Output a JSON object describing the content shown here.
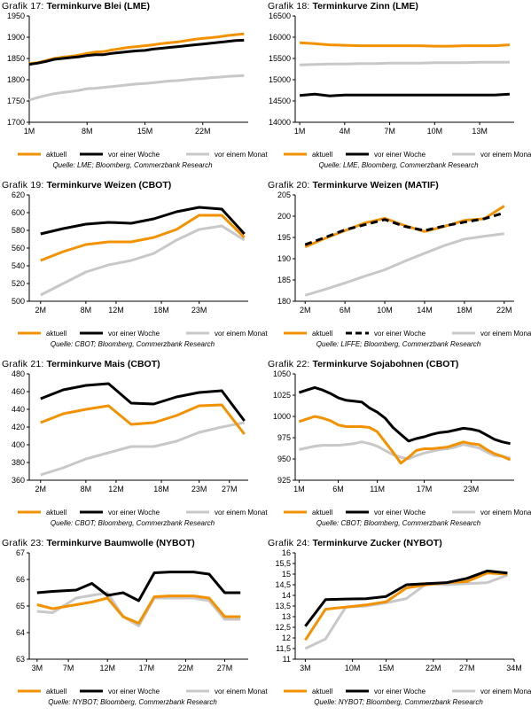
{
  "legend_labels": [
    "aktuell",
    "vor einer Woche",
    "vor einem Monat"
  ],
  "colors": {
    "aktuell": "#f39200",
    "vor einer Woche": "#000000",
    "vor einem Monat": "#c8c8c8"
  },
  "chart_data": [
    {
      "type": "line",
      "prefix": "Grafik 17:",
      "title": "Terminkurve Blei (LME)",
      "source": "Quelle: LME; Bloomberg, Commerzbank Research",
      "x": [
        1,
        2,
        3,
        4,
        5,
        6,
        7,
        8,
        9,
        10,
        11,
        12,
        13,
        14,
        15,
        16,
        17,
        18,
        19,
        20,
        21,
        22,
        23,
        24,
        25,
        26,
        27
      ],
      "xlim": [
        1,
        27.5
      ],
      "xticks": [
        1,
        8,
        15,
        22
      ],
      "xtick_labels": [
        "1M",
        "8M",
        "15M",
        "22M"
      ],
      "ylim": [
        1700,
        1950
      ],
      "yticks": [
        1700,
        1750,
        1800,
        1850,
        1900,
        1950
      ],
      "series": [
        {
          "name": "aktuell",
          "values": [
            1838,
            1840,
            1845,
            1850,
            1853,
            1855,
            1858,
            1862,
            1865,
            1866,
            1870,
            1873,
            1876,
            1878,
            1880,
            1882,
            1885,
            1887,
            1889,
            1892,
            1895,
            1897,
            1899,
            1901,
            1904,
            1906,
            1908
          ]
        },
        {
          "name": "vor einer Woche",
          "values": [
            1836,
            1839,
            1843,
            1848,
            1850,
            1852,
            1854,
            1857,
            1859,
            1859,
            1862,
            1864,
            1866,
            1868,
            1869,
            1872,
            1874,
            1876,
            1878,
            1880,
            1882,
            1884,
            1886,
            1888,
            1890,
            1892,
            1893
          ]
        },
        {
          "name": "vor einem Monat",
          "values": [
            1752,
            1758,
            1763,
            1767,
            1770,
            1772,
            1775,
            1779,
            1780,
            1782,
            1784,
            1786,
            1788,
            1790,
            1791,
            1793,
            1795,
            1797,
            1798,
            1800,
            1802,
            1803,
            1805,
            1806,
            1808,
            1809,
            1810
          ]
        }
      ]
    },
    {
      "type": "line",
      "prefix": "Grafik 18:",
      "title": "Terminkurve Zinn (LME)",
      "source": "Quelle: LME, Bloomberg, Commerzbank Research",
      "x": [
        1,
        2,
        3,
        4,
        5,
        6,
        7,
        8,
        9,
        10,
        11,
        12,
        13,
        14,
        15
      ],
      "xlim": [
        0.7,
        15.3
      ],
      "xticks": [
        1,
        4,
        7,
        10,
        13
      ],
      "xtick_labels": [
        "1M",
        "4M",
        "7M",
        "10M",
        "13M"
      ],
      "ylim": [
        14000,
        16500
      ],
      "yticks": [
        14000,
        14500,
        15000,
        15500,
        16000,
        16500
      ],
      "series": [
        {
          "name": "aktuell",
          "values": [
            15870,
            15850,
            15820,
            15810,
            15800,
            15800,
            15800,
            15800,
            15800,
            15790,
            15790,
            15800,
            15800,
            15800,
            15820
          ]
        },
        {
          "name": "vor einer Woche",
          "values": [
            14630,
            14660,
            14620,
            14640,
            14640,
            14640,
            14640,
            14640,
            14640,
            14640,
            14640,
            14640,
            14640,
            14640,
            14660
          ]
        },
        {
          "name": "vor einem Monat",
          "values": [
            15350,
            15360,
            15370,
            15370,
            15380,
            15380,
            15390,
            15390,
            15390,
            15400,
            15400,
            15400,
            15410,
            15410,
            15410
          ]
        }
      ]
    },
    {
      "type": "line",
      "prefix": "Grafik 19:",
      "title": "Terminkurve Weizen (CBOT)",
      "source": "Quelle: CBOT; Bloomberg, Commerzbank Research",
      "x": [
        2,
        5,
        8,
        11,
        14,
        17,
        20,
        23,
        26,
        29
      ],
      "xlim": [
        0.5,
        29.5
      ],
      "xticks": [
        2,
        8,
        12,
        18,
        23
      ],
      "xtick_labels": [
        "2M",
        "8M",
        "12M",
        "18M",
        "23M"
      ],
      "ylim": [
        500,
        620
      ],
      "yticks": [
        500,
        520,
        540,
        560,
        580,
        600,
        620
      ],
      "series": [
        {
          "name": "aktuell",
          "values": [
            546,
            556,
            564,
            567,
            567,
            572,
            581,
            597,
            597,
            572
          ]
        },
        {
          "name": "vor einer Woche",
          "values": [
            576,
            582,
            587,
            589,
            588,
            593,
            601,
            606,
            604,
            576
          ]
        },
        {
          "name": "vor einem Monat",
          "values": [
            507,
            520,
            533,
            541,
            546,
            554,
            569,
            581,
            585,
            569
          ]
        }
      ]
    },
    {
      "type": "line",
      "prefix": "Grafik 20:",
      "title": "Terminkurve Weizen (MATIF)",
      "source": "Quelle: LIFFE; Bloomberg, Commerzbank Research",
      "x": [
        2,
        4,
        6,
        8,
        10,
        12,
        14,
        16,
        18,
        20,
        22
      ],
      "xlim": [
        1,
        23
      ],
      "xticks": [
        2,
        6,
        10,
        14,
        18,
        22
      ],
      "xtick_labels": [
        "2M",
        "6M",
        "10M",
        "14M",
        "18M",
        "22M"
      ],
      "ylim": [
        180,
        205
      ],
      "yticks": [
        180,
        185,
        190,
        195,
        200,
        205
      ],
      "series": [
        {
          "name": "aktuell",
          "values": [
            192.8,
            194.8,
            196.6,
            198.4,
            199.5,
            197.8,
            196.4,
            197.6,
            199,
            199.4,
            202.4
          ]
        },
        {
          "name": "vor einer Woche",
          "values": [
            193.3,
            195,
            196.8,
            198,
            199.2,
            197.6,
            196.6,
            197.7,
            198.6,
            199.4,
            200.8
          ],
          "dashed": true
        },
        {
          "name": "vor einem Monat",
          "values": [
            181.4,
            182.8,
            184.3,
            185.9,
            187.4,
            189.4,
            191.3,
            193.1,
            194.6,
            195.3,
            195.9
          ]
        }
      ]
    },
    {
      "type": "line",
      "prefix": "Grafik 21:",
      "title": "Terminkurve Mais (CBOT)",
      "source": "Quelle: CBOT; Bloomberg, Commerzbank Research",
      "x": [
        2,
        5,
        8,
        11,
        14,
        17,
        20,
        23,
        26,
        29
      ],
      "xlim": [
        0.5,
        29.5
      ],
      "xticks": [
        2,
        8,
        12,
        18,
        23,
        27
      ],
      "xtick_labels": [
        "2M",
        "8M",
        "12M",
        "18M",
        "23M",
        "27M"
      ],
      "ylim": [
        360,
        480
      ],
      "yticks": [
        360,
        380,
        400,
        420,
        440,
        460,
        480
      ],
      "series": [
        {
          "name": "aktuell",
          "values": [
            425,
            435,
            440,
            444,
            423,
            425,
            433,
            444,
            445,
            412
          ]
        },
        {
          "name": "vor einer Woche",
          "values": [
            452,
            462,
            467,
            469,
            447,
            446,
            454,
            459,
            461,
            427
          ]
        },
        {
          "name": "vor einem Monat",
          "values": [
            366,
            374,
            384,
            391,
            398,
            398,
            404,
            414,
            420,
            425
          ]
        }
      ]
    },
    {
      "type": "line",
      "prefix": "Grafik 22:",
      "title": "Terminkurve Sojabohnen (CBOT)",
      "source": "Quelle: CBOT; Bloomberg, Commerzbank Research",
      "x": [
        1,
        2,
        3,
        4,
        5,
        6,
        7,
        8,
        9,
        10,
        11,
        12,
        13,
        14,
        15,
        16,
        17,
        18,
        19,
        20,
        21,
        22,
        23,
        24,
        25,
        26,
        27,
        28
      ],
      "xlim": [
        0.5,
        28.5
      ],
      "xticks": [
        1,
        6,
        11,
        17,
        23
      ],
      "xtick_labels": [
        "1M",
        "6M",
        "11M",
        "17M",
        "23M"
      ],
      "ylim": [
        925,
        1050
      ],
      "yticks": [
        925,
        950,
        975,
        1000,
        1025,
        1050
      ],
      "series": [
        {
          "name": "aktuell",
          "values": [
            994,
            997,
            1000,
            998,
            995,
            990,
            988,
            988,
            988,
            987,
            982,
            970,
            958,
            945,
            952,
            960,
            962,
            962,
            963,
            964,
            967,
            970,
            968,
            967,
            961,
            956,
            953,
            949
          ]
        },
        {
          "name": "vor einer Woche",
          "values": [
            1028,
            1031,
            1034,
            1031,
            1027,
            1022,
            1019,
            1018,
            1017,
            1010,
            1005,
            998,
            987,
            979,
            971,
            974,
            976,
            979,
            981,
            982,
            984,
            986,
            985,
            983,
            978,
            973,
            970,
            968
          ]
        },
        {
          "name": "vor einem Monat",
          "values": [
            961,
            963,
            965,
            966,
            966,
            966,
            967,
            968,
            970,
            968,
            965,
            960,
            955,
            952,
            950,
            954,
            957,
            959,
            961,
            962,
            964,
            967,
            965,
            963,
            958,
            954,
            953,
            951
          ]
        }
      ]
    },
    {
      "type": "line",
      "prefix": "Grafik 23:",
      "title": "Terminkurve Baumwolle (NYBOT)",
      "source": "Quelle: NYBOT; Bloomberg, Commerzbank Research",
      "x": [
        3,
        5,
        8,
        10,
        12,
        14,
        16,
        18,
        20,
        23,
        25,
        27,
        29
      ],
      "xlim": [
        2,
        30
      ],
      "xticks": [
        3,
        7,
        12,
        17,
        22,
        27
      ],
      "xtick_labels": [
        "3M",
        "7M",
        "12M",
        "17M",
        "22M",
        "27M"
      ],
      "ylim": [
        63,
        67
      ],
      "yticks": [
        63,
        64,
        65,
        66,
        67
      ],
      "series": [
        {
          "name": "aktuell",
          "values": [
            65.05,
            64.9,
            65.05,
            65.15,
            65.3,
            64.6,
            64.35,
            65.35,
            65.38,
            65.38,
            65.3,
            64.6,
            64.6
          ]
        },
        {
          "name": "vor einer Woche",
          "values": [
            65.5,
            65.55,
            65.6,
            65.85,
            65.4,
            65.5,
            65.2,
            66.25,
            66.28,
            66.28,
            66.2,
            65.5,
            65.5
          ]
        },
        {
          "name": "vor einem Monat",
          "values": [
            64.8,
            64.75,
            65.3,
            65.4,
            65.5,
            64.6,
            64.25,
            65.3,
            65.3,
            65.3,
            65.2,
            64.5,
            64.5
          ]
        }
      ]
    },
    {
      "type": "line",
      "prefix": "Grafik 24:",
      "title": "Terminkurve Zucker (NYBOT)",
      "source": "Quelle: NYBOT; Bloomberg, Commerzbank Research",
      "x": [
        3,
        6,
        9,
        12,
        15,
        18,
        21,
        24,
        27,
        30,
        33
      ],
      "xlim": [
        1.5,
        34
      ],
      "xticks": [
        3,
        10,
        15,
        22,
        27,
        34
      ],
      "xtick_labels": [
        "3M",
        "10M",
        "15M",
        "22M",
        "27M",
        "34M"
      ],
      "ylim": [
        11,
        16
      ],
      "yticks": [
        11,
        11.5,
        12,
        12.5,
        13,
        13.5,
        14,
        14.5,
        15,
        15.5,
        16
      ],
      "series": [
        {
          "name": "aktuell",
          "values": [
            11.9,
            13.35,
            13.45,
            13.55,
            13.7,
            14.35,
            14.5,
            14.6,
            14.65,
            15.05,
            15.0
          ]
        },
        {
          "name": "vor einer Woche",
          "values": [
            12.55,
            13.8,
            13.83,
            13.84,
            13.95,
            14.5,
            14.55,
            14.6,
            14.8,
            15.15,
            15.05
          ]
        },
        {
          "name": "vor einem Monat",
          "values": [
            11.5,
            11.95,
            13.45,
            13.5,
            13.65,
            13.85,
            14.55,
            14.5,
            14.55,
            14.6,
            14.95
          ]
        }
      ]
    }
  ]
}
